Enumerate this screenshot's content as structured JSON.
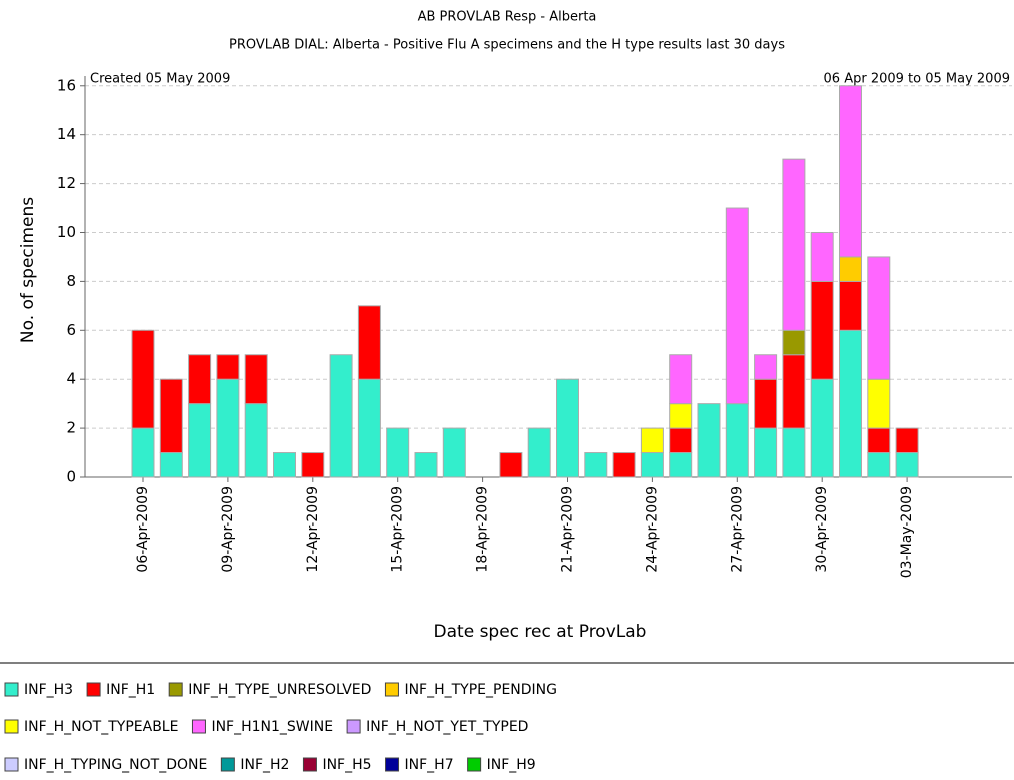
{
  "chart_data": {
    "type": "stacked_bar",
    "title": "AB PROVLAB Resp - Alberta",
    "subtitle": "PROVLAB DIAL: Alberta - Positive Flu A specimens and the H type results last 30 days",
    "annotations": [
      "Created 05 May 2009",
      "06 Apr 2009 to 05 May 2009"
    ],
    "x_label": "Date spec rec at ProvLab",
    "y_label": "No. of specimens",
    "categories": [
      "06-Apr-2009",
      null,
      null,
      "09-Apr-2009",
      null,
      null,
      "12-Apr-2009",
      null,
      null,
      "15-Apr-2009",
      null,
      null,
      "18-Apr-2009",
      null,
      null,
      "21-Apr-2009",
      null,
      null,
      "24-Apr-2009",
      null,
      null,
      "27-Apr-2009",
      null,
      null,
      "30-Apr-2009",
      null,
      null,
      "03-May-2009",
      null,
      null
    ],
    "ylim": [
      0,
      16.4
    ],
    "yticks": [
      0,
      2,
      4,
      6,
      8,
      10,
      12,
      14,
      16
    ],
    "grid": true,
    "series": [
      {
        "name": "INF_H3",
        "color": "#33eecc",
        "values": [
          2,
          1,
          3,
          4,
          3,
          1,
          0,
          5,
          4,
          2,
          1,
          2,
          0,
          0,
          2,
          4,
          1,
          0,
          1,
          1,
          3,
          3,
          2,
          2,
          4,
          6,
          1,
          1,
          0,
          0
        ]
      },
      {
        "name": "INF_H1",
        "color": "#ff0000",
        "values": [
          4,
          3,
          2,
          1,
          2,
          0,
          1,
          0,
          3,
          0,
          0,
          0,
          0,
          1,
          0,
          0,
          0,
          1,
          0,
          1,
          0,
          0,
          2,
          3,
          4,
          2,
          1,
          1,
          0,
          0
        ]
      },
      {
        "name": "INF_H_TYPE_UNRESOLVED",
        "color": "#999900",
        "values": [
          0,
          0,
          0,
          0,
          0,
          0,
          0,
          0,
          0,
          0,
          0,
          0,
          0,
          0,
          0,
          0,
          0,
          0,
          0,
          0,
          0,
          0,
          0,
          1,
          0,
          0,
          0,
          0,
          0,
          0
        ]
      },
      {
        "name": "INF_H_TYPE_PENDING",
        "color": "#ffcc00",
        "values": [
          0,
          0,
          0,
          0,
          0,
          0,
          0,
          0,
          0,
          0,
          0,
          0,
          0,
          0,
          0,
          0,
          0,
          0,
          0,
          0,
          0,
          0,
          0,
          0,
          0,
          1,
          0,
          0,
          0,
          0
        ]
      },
      {
        "name": "INF_H_NOT_TYPEABLE",
        "color": "#ffff00",
        "values": [
          0,
          0,
          0,
          0,
          0,
          0,
          0,
          0,
          0,
          0,
          0,
          0,
          0,
          0,
          0,
          0,
          0,
          0,
          1,
          1,
          0,
          0,
          0,
          0,
          0,
          0,
          2,
          0,
          0,
          0
        ]
      },
      {
        "name": "INF_H1N1_SWINE",
        "color": "#ff66ff",
        "values": [
          0,
          0,
          0,
          0,
          0,
          0,
          0,
          0,
          0,
          0,
          0,
          0,
          0,
          0,
          0,
          0,
          0,
          0,
          0,
          2,
          0,
          8,
          1,
          7,
          2,
          7,
          5,
          0,
          0,
          0
        ]
      },
      {
        "name": "INF_H_NOT_YET_TYPED",
        "color": "#cc99ff",
        "values": [
          0,
          0,
          0,
          0,
          0,
          0,
          0,
          0,
          0,
          0,
          0,
          0,
          0,
          0,
          0,
          0,
          0,
          0,
          0,
          0,
          0,
          0,
          0,
          0,
          0,
          0,
          0,
          0,
          0,
          0
        ]
      },
      {
        "name": "INF_H_TYPING_NOT_DONE",
        "color": "#ccccff",
        "values": [
          0,
          0,
          0,
          0,
          0,
          0,
          0,
          0,
          0,
          0,
          0,
          0,
          0,
          0,
          0,
          0,
          0,
          0,
          0,
          0,
          0,
          0,
          0,
          0,
          0,
          0,
          0,
          0,
          0,
          0
        ]
      },
      {
        "name": "INF_H2",
        "color": "#009999",
        "values": [
          0,
          0,
          0,
          0,
          0,
          0,
          0,
          0,
          0,
          0,
          0,
          0,
          0,
          0,
          0,
          0,
          0,
          0,
          0,
          0,
          0,
          0,
          0,
          0,
          0,
          0,
          0,
          0,
          0,
          0
        ]
      },
      {
        "name": "INF_H5",
        "color": "#990033",
        "values": [
          0,
          0,
          0,
          0,
          0,
          0,
          0,
          0,
          0,
          0,
          0,
          0,
          0,
          0,
          0,
          0,
          0,
          0,
          0,
          0,
          0,
          0,
          0,
          0,
          0,
          0,
          0,
          0,
          0,
          0
        ]
      },
      {
        "name": "INF_H7",
        "color": "#000099",
        "values": [
          0,
          0,
          0,
          0,
          0,
          0,
          0,
          0,
          0,
          0,
          0,
          0,
          0,
          0,
          0,
          0,
          0,
          0,
          0,
          0,
          0,
          0,
          0,
          0,
          0,
          0,
          0,
          0,
          0,
          0
        ]
      },
      {
        "name": "INF_H9",
        "color": "#00cc00",
        "values": [
          0,
          0,
          0,
          0,
          0,
          0,
          0,
          0,
          0,
          0,
          0,
          0,
          0,
          0,
          0,
          0,
          0,
          0,
          0,
          0,
          0,
          0,
          0,
          0,
          0,
          0,
          0,
          0,
          0,
          0
        ]
      }
    ]
  }
}
